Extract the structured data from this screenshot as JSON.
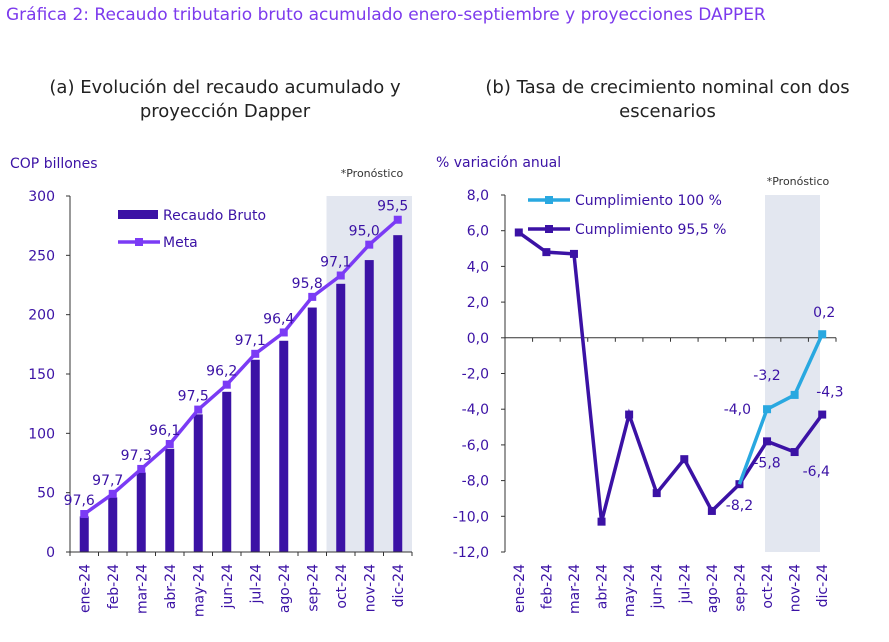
{
  "figure": {
    "title": "Gráfica 2: Recaudo tributario bruto acumulado enero-septiembre y proyecciones DAPPER"
  },
  "colors": {
    "title": "#7c3aed",
    "bars": "#3b12a5",
    "meta_line": "#7b3bf5",
    "axis_text": "#3b12a5",
    "cumplimiento_100": "#29a8e0",
    "cumplimiento_955": "#3b12a5",
    "forecast_shade": "#e3e7f0"
  },
  "chart_data": [
    {
      "id": "a",
      "type": "bar",
      "title": "(a) Evolución del recaudo acumulado y proyección Dapper",
      "ylabel": "COP billones",
      "ylim": [
        0,
        300
      ],
      "yticks": [
        0,
        50,
        100,
        150,
        200,
        250,
        300
      ],
      "categories": [
        "ene-24",
        "feb-24",
        "mar-24",
        "abr-24",
        "may-24",
        "jun-24",
        "jul-24",
        "ago-24",
        "sep-24",
        "oct-24",
        "nov-24",
        "dic-24"
      ],
      "forecast_label": "*Pronóstico",
      "forecast_from_index": 9,
      "legend_position": "top-left",
      "series": [
        {
          "name": "Recaudo Bruto",
          "kind": "bar",
          "values": [
            30,
            46,
            67,
            87,
            116,
            135,
            162,
            178,
            206,
            226,
            246,
            267
          ]
        },
        {
          "name": "Meta",
          "kind": "line",
          "values": [
            32,
            49,
            70,
            91,
            120,
            141,
            167,
            185,
            215,
            233,
            259,
            280
          ]
        }
      ],
      "data_labels": [
        "97,6",
        "97,7",
        "97,3",
        "96,1",
        "97,5",
        "96,2",
        "97,1",
        "96,4",
        "95,8",
        "97,1",
        "95,0",
        "95,5"
      ]
    },
    {
      "id": "b",
      "type": "line",
      "title": "(b) Tasa de crecimiento nominal con dos escenarios",
      "ylabel": "% variación anual",
      "ylim": [
        -12,
        8
      ],
      "yticks": [
        "8,0",
        "6,0",
        "4,0",
        "2,0",
        "0,0",
        "-2,0",
        "-4,0",
        "-6,0",
        "-8,0",
        "-10,0",
        "-12,0"
      ],
      "categories": [
        "ene-24",
        "feb-24",
        "mar-24",
        "abr-24",
        "may-24",
        "jun-24",
        "jul-24",
        "ago-24",
        "sep-24",
        "oct-24",
        "nov-24",
        "dic-24"
      ],
      "forecast_label": "*Pronóstico",
      "forecast_from_index": 9,
      "legend_position": "top-left",
      "series": [
        {
          "name": "Cumplimiento 100 %",
          "values": [
            null,
            null,
            null,
            null,
            null,
            null,
            null,
            null,
            -8.2,
            -4.0,
            -3.2,
            0.2
          ]
        },
        {
          "name": "Cumplimiento 95,5 %",
          "values": [
            5.9,
            4.8,
            4.7,
            -10.3,
            -4.3,
            -8.7,
            -6.8,
            -9.7,
            -8.2,
            -5.8,
            -6.4,
            -4.3
          ]
        }
      ],
      "data_labels": [
        {
          "text": "-8,2",
          "index": 8,
          "value": -8.2,
          "anchor": "below"
        },
        {
          "text": "-4,0",
          "index": 9,
          "value": -4.0,
          "anchor": "left"
        },
        {
          "text": "-3,2",
          "index": 10,
          "value": -3.2,
          "anchor": "above-left"
        },
        {
          "text": "0,2",
          "index": 11,
          "value": 0.2,
          "anchor": "above"
        },
        {
          "text": "-5,8",
          "index": 9,
          "value": -5.8,
          "anchor": "below"
        },
        {
          "text": "-6,4",
          "index": 10,
          "value": -6.4,
          "anchor": "below-right"
        },
        {
          "text": "-4,3",
          "index": 11,
          "value": -4.3,
          "anchor": "above-right"
        }
      ]
    }
  ]
}
